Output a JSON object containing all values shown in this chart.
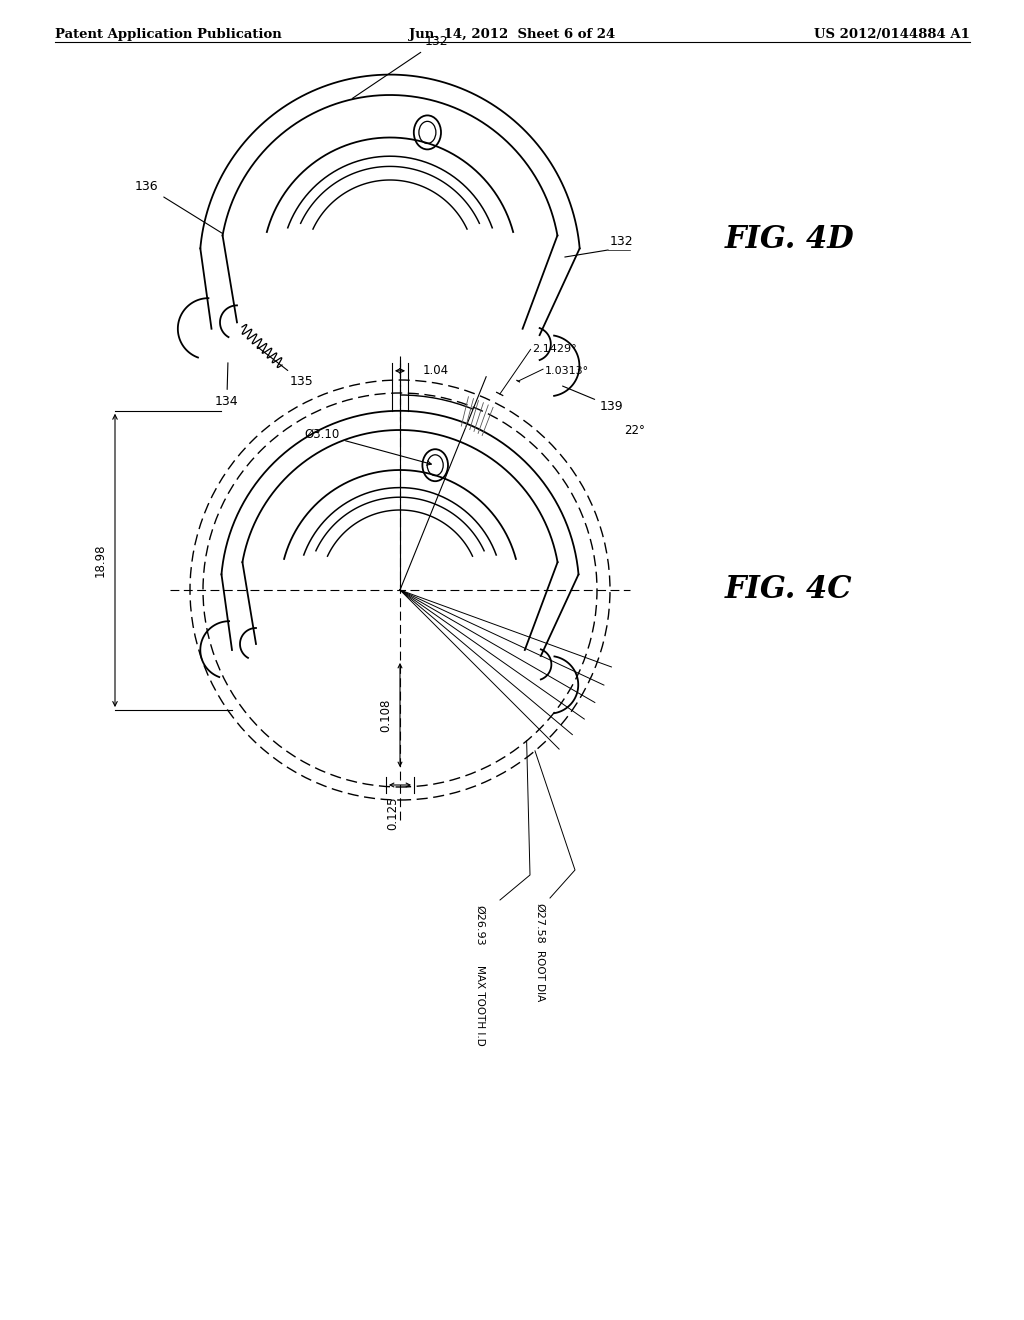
{
  "header_left": "Patent Application Publication",
  "header_center": "Jun. 14, 2012  Sheet 6 of 24",
  "header_right": "US 2012/0144884 A1",
  "fig4d_label": "FIG. 4D",
  "fig4c_label": "FIG. 4C",
  "label_132_top": "132",
  "label_136": "136",
  "label_134": "134",
  "label_135": "135",
  "label_132_right": "132",
  "label_139": "139",
  "dim_1_04": "1.04",
  "dim_phi3_10": "Ø3.10",
  "dim_18_98": "18.98",
  "dim_0_108": "0.108",
  "dim_0_125": "0.125",
  "dim_phi26_93": "Ø26.93",
  "dim_phi26_93_sub": "MAX TOOTH I.D",
  "dim_phi27_58": "Ø27.58",
  "dim_phi27_58_sub": "ROOT DIA",
  "dim_22": "22°",
  "dim_2_1429": "2.1429°",
  "dim_1_0313": "1.0313°",
  "line_color": "#000000",
  "bg_color": "#ffffff"
}
